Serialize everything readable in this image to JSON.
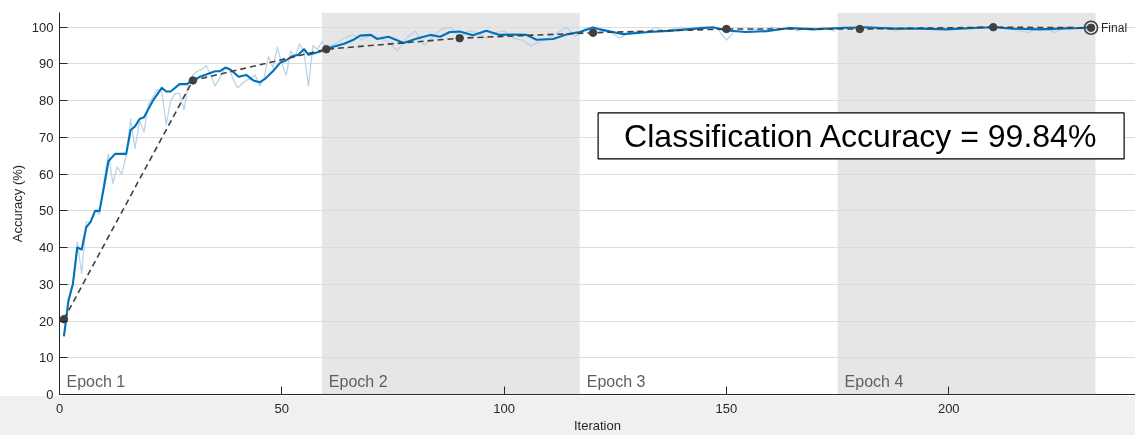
{
  "chart_data": {
    "type": "line",
    "xlabel": "Iteration",
    "ylabel": "Accuracy (%)",
    "xlim": [
      0,
      242
    ],
    "ylim": [
      0,
      104
    ],
    "xticks": [
      0,
      50,
      100,
      150,
      200
    ],
    "yticks": [
      0,
      10,
      20,
      30,
      40,
      50,
      60,
      70,
      80,
      90,
      100
    ],
    "grid": "y",
    "series": [
      {
        "color": "#b8d4ea",
        "x": [
          1,
          2,
          3,
          4,
          5,
          6,
          7,
          8,
          9,
          10,
          11,
          12,
          13,
          14,
          15,
          16,
          17,
          18,
          19,
          20,
          21,
          22,
          23,
          24,
          25,
          26,
          27,
          28,
          29,
          30,
          31,
          32,
          33,
          34,
          35,
          36,
          37,
          38,
          39,
          40,
          41,
          42,
          43,
          44,
          45,
          46,
          47,
          48,
          49,
          50,
          51,
          52,
          53,
          54,
          55,
          56,
          57,
          58,
          59,
          60,
          62,
          64,
          66,
          68,
          70,
          72,
          74,
          76,
          78,
          80,
          82,
          84,
          86,
          88,
          90,
          92,
          94,
          96,
          98,
          100,
          102,
          104,
          106,
          108,
          110,
          112,
          114,
          116,
          118,
          120,
          122,
          124,
          126,
          128,
          130,
          132,
          134,
          136,
          138,
          140,
          142,
          144,
          146,
          148,
          150,
          152,
          154,
          156,
          158,
          160,
          162,
          164,
          166,
          168,
          170,
          172,
          174,
          176,
          178,
          180,
          182,
          184,
          186,
          188,
          190,
          192,
          194,
          196,
          198,
          200,
          202,
          204,
          206,
          208,
          210,
          212,
          214,
          216,
          218,
          220,
          222,
          224,
          226,
          228,
          230,
          232
        ],
        "values": [
          16,
          25,
          30,
          41.5,
          33,
          47,
          47,
          50,
          49,
          58,
          65.5,
          57.5,
          62,
          60,
          65,
          75,
          67,
          74.5,
          71.5,
          79,
          81,
          83,
          82.5,
          73.5,
          80,
          82,
          82,
          77.5,
          85,
          87,
          88,
          88.5,
          89.5,
          87,
          84,
          86,
          88.5,
          89,
          86,
          83.5,
          84.5,
          85.5,
          86,
          87,
          84,
          86,
          92,
          89,
          94.5,
          90,
          87,
          93.5,
          92,
          95.5,
          93,
          84,
          95,
          94,
          96,
          94.5,
          95.5,
          97,
          98,
          96.5,
          98,
          97,
          96,
          93.5,
          97,
          99,
          95,
          97.5,
          99.5,
          100,
          97,
          99,
          98.5,
          97,
          98.5,
          99,
          97,
          96.5,
          95,
          96,
          97,
          98.5,
          100,
          97.5,
          99.5,
          100,
          99,
          98.5,
          97,
          98.5,
          99,
          98.5,
          100,
          99,
          99.5,
          100,
          99,
          100,
          100,
          99.5,
          96.5,
          99,
          98.5,
          99.5,
          99,
          100,
          99.5,
          100,
          99,
          100,
          99.5,
          100,
          99,
          100,
          100,
          99.5,
          100,
          99.5,
          100,
          99,
          100,
          99.5,
          100,
          99.5,
          100,
          99.5,
          100,
          99.5,
          100,
          100,
          99.5,
          100,
          99.5,
          99,
          98.5,
          100,
          99.5,
          98.5,
          100,
          100,
          99.5,
          100
        ]
      },
      {
        "color": "#0072bd",
        "x": [
          1,
          2,
          3,
          4,
          5,
          6,
          7,
          8,
          9,
          10,
          11,
          12.5,
          15,
          16,
          17,
          18,
          19,
          21,
          23,
          24,
          25,
          27,
          28.6,
          30,
          31.6,
          35,
          36,
          37.3,
          38.4,
          40.3,
          42,
          43.6,
          45,
          46.3,
          48,
          49.6,
          51,
          52.2,
          53.7,
          55,
          56,
          57.5,
          59,
          61,
          64,
          66,
          67.6,
          70,
          71.4,
          74,
          77.4,
          80.4,
          83.4,
          85.6,
          87.8,
          90,
          93,
          96,
          99,
          102,
          105,
          107.3,
          111,
          114,
          117,
          120,
          121.6,
          126.8,
          132.6,
          137,
          143,
          147,
          150,
          154.5,
          159,
          164.3,
          169.5,
          175.5,
          181.5,
          187.5,
          193.5,
          199.5,
          205.5,
          210,
          214.5,
          220.5,
          225,
          229.5,
          232
        ],
        "values": [
          15.8,
          25.5,
          30,
          40,
          39.5,
          45.5,
          47,
          50,
          50,
          56.5,
          63.5,
          65.5,
          65.5,
          72,
          73,
          75,
          75.5,
          80,
          83.5,
          82.5,
          82.5,
          84.5,
          84.5,
          85.5,
          86.5,
          88,
          88,
          89,
          88.5,
          86.5,
          87,
          85.5,
          85,
          86,
          88,
          90.3,
          91,
          92,
          92.5,
          94,
          92.5,
          93,
          93.5,
          94.5,
          95.5,
          96.5,
          97.7,
          97.9,
          96.8,
          97.4,
          95.7,
          96.9,
          97.9,
          97.4,
          98.7,
          98.8,
          97.8,
          99,
          97.9,
          98,
          97.9,
          96.6,
          96.8,
          98,
          98.7,
          99.9,
          99.4,
          98.1,
          98.7,
          99,
          99.6,
          100,
          99.1,
          98.7,
          98.9,
          99.8,
          99.4,
          99.8,
          100,
          99.6,
          99.6,
          99.4,
          99.8,
          100,
          99.6,
          99.4,
          99.6,
          99.8,
          100
        ]
      },
      {
        "color": "#404040",
        "line_style": "dashed",
        "marker": "circle",
        "x": [
          1,
          30,
          60,
          90,
          120,
          150,
          180,
          210,
          232
        ],
        "values": [
          20.5,
          85.5,
          94,
          97,
          98.5,
          99.5,
          99.5,
          100,
          99.84
        ]
      },
      {
        "type": "scatter",
        "name": "Final",
        "color": "#404040",
        "marker": "circle",
        "x": [
          232
        ],
        "values": [
          99.84
        ]
      }
    ],
    "bands": [
      {
        "axis": "x",
        "from": 59,
        "to": 117,
        "label": "Epoch 2",
        "color": "#e6e6e6"
      },
      {
        "axis": "x",
        "from": 175,
        "to": 233,
        "label": "Epoch 4",
        "color": "#e6e6e6"
      }
    ],
    "annotations": [
      "Epoch 1",
      {
        "text": "Epoch 3",
        "x": 117,
        "y": 0
      },
      "Classification Accuracy = 99.84%"
    ]
  }
}
